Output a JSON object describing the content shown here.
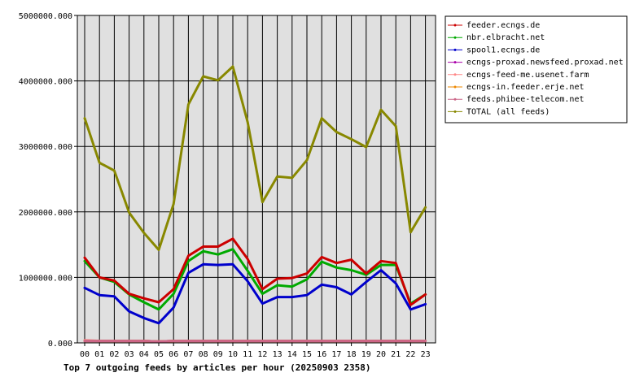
{
  "chart_data": {
    "type": "line",
    "title": "Top 7 outgoing feeds by articles per hour (20250903 2358)",
    "xlabel": "",
    "ylabel": "",
    "categories": [
      "00",
      "01",
      "02",
      "03",
      "04",
      "05",
      "06",
      "07",
      "08",
      "09",
      "10",
      "11",
      "12",
      "13",
      "14",
      "15",
      "16",
      "17",
      "18",
      "19",
      "20",
      "21",
      "22",
      "23"
    ],
    "ylim": [
      0,
      5000000
    ],
    "yticks": [
      0,
      1000000,
      2000000,
      3000000,
      4000000,
      5000000
    ],
    "ytick_labels": [
      "0.000",
      "1000000.000",
      "2000000.000",
      "3000000.000",
      "4000000.000",
      "5000000.000"
    ],
    "grid": true,
    "legend_position": "top-right",
    "series": [
      {
        "name": "feeder.ecngs.de",
        "color": "#cc0000",
        "values": [
          1300000,
          1000000,
          950000,
          750000,
          680000,
          620000,
          820000,
          1330000,
          1470000,
          1470000,
          1590000,
          1280000,
          820000,
          980000,
          990000,
          1060000,
          1310000,
          1220000,
          1270000,
          1060000,
          1250000,
          1220000,
          580000,
          740000
        ]
      },
      {
        "name": "nbr.elbracht.net",
        "color": "#00aa00",
        "values": [
          1250000,
          1000000,
          930000,
          740000,
          620000,
          510000,
          750000,
          1250000,
          1400000,
          1350000,
          1430000,
          1100000,
          750000,
          880000,
          860000,
          970000,
          1240000,
          1150000,
          1110000,
          1040000,
          1190000,
          1190000,
          600000,
          740000
        ]
      },
      {
        "name": "spool1.ecngs.de",
        "color": "#0000cc",
        "values": [
          840000,
          730000,
          710000,
          480000,
          380000,
          300000,
          540000,
          1070000,
          1200000,
          1190000,
          1200000,
          940000,
          600000,
          700000,
          700000,
          730000,
          890000,
          850000,
          740000,
          930000,
          1110000,
          910000,
          510000,
          590000
        ]
      },
      {
        "name": "ecngs-proxad.newsfeed.proxad.net",
        "color": "#aa00aa",
        "values": [
          30000,
          30000,
          30000,
          30000,
          30000,
          20000,
          30000,
          30000,
          30000,
          30000,
          30000,
          30000,
          30000,
          30000,
          30000,
          30000,
          30000,
          30000,
          30000,
          30000,
          30000,
          30000,
          30000,
          30000
        ]
      },
      {
        "name": "ecngs-feed-me.usenet.farm",
        "color": "#ff8888",
        "values": [
          40000,
          30000,
          30000,
          30000,
          30000,
          20000,
          30000,
          30000,
          30000,
          30000,
          30000,
          30000,
          30000,
          30000,
          30000,
          30000,
          30000,
          30000,
          30000,
          30000,
          30000,
          30000,
          30000,
          30000
        ]
      },
      {
        "name": "ecngs-in.feeder.erje.net",
        "color": "#ee8800",
        "values": [
          30000,
          30000,
          30000,
          30000,
          30000,
          20000,
          30000,
          30000,
          30000,
          30000,
          30000,
          30000,
          30000,
          30000,
          30000,
          30000,
          30000,
          30000,
          30000,
          30000,
          30000,
          30000,
          30000,
          30000
        ]
      },
      {
        "name": "feeds.phibee-telecom.net",
        "color": "#cc6688",
        "values": [
          30000,
          30000,
          30000,
          30000,
          30000,
          20000,
          30000,
          30000,
          30000,
          30000,
          30000,
          30000,
          30000,
          30000,
          30000,
          30000,
          30000,
          30000,
          30000,
          30000,
          30000,
          30000,
          30000,
          30000
        ]
      },
      {
        "name": "TOTAL (all feeds)",
        "color": "#888800",
        "values": [
          3430000,
          2750000,
          2630000,
          1990000,
          1680000,
          1420000,
          2120000,
          3640000,
          4070000,
          4010000,
          4220000,
          3370000,
          2150000,
          2540000,
          2520000,
          2790000,
          3430000,
          3220000,
          3110000,
          2990000,
          3560000,
          3310000,
          1690000,
          2070000
        ]
      }
    ]
  }
}
